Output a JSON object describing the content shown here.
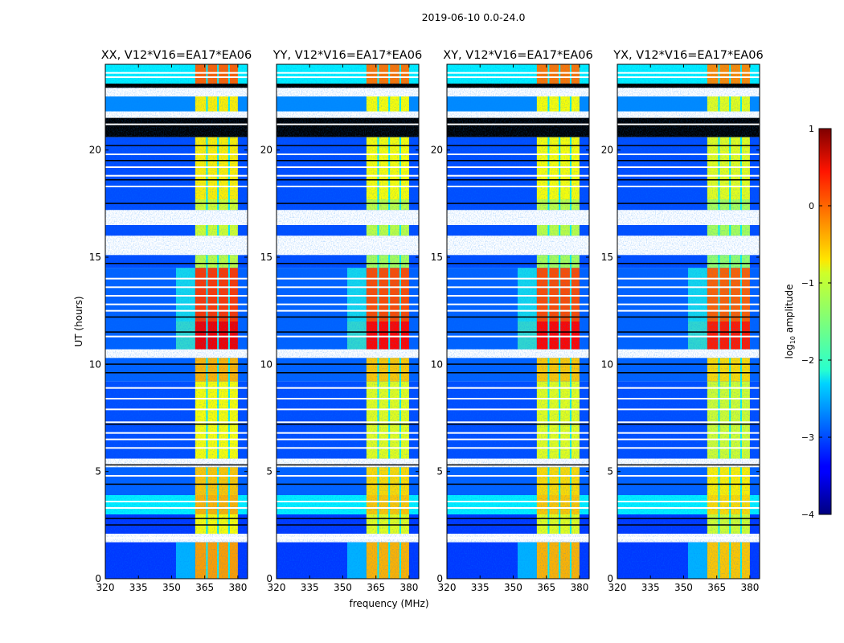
{
  "chart_data": {
    "type": "heatmap",
    "suptitle": "2019-06-10 0.0-24.0",
    "xlabel": "frequency (MHz)",
    "ylabel": "UT (hours)",
    "xlim": [
      320,
      384.4
    ],
    "ylim": [
      0,
      24
    ],
    "xticks": [
      320,
      335,
      350,
      365,
      380
    ],
    "yticks": [
      0,
      5,
      10,
      15,
      20
    ],
    "colorbar": {
      "label": "log10 amplitude",
      "label_main": "log",
      "label_sub": "10",
      "label_rest": " amplitude",
      "range": [
        -4,
        1
      ],
      "ticks": [
        1,
        0,
        -1,
        -2,
        -3,
        -4
      ],
      "tick_labels": [
        "1",
        "0",
        "−1",
        "−2",
        "−3",
        "−4"
      ],
      "colormap": "jet"
    },
    "panels": [
      {
        "title": "XX, V12*V16=EA17*EA06",
        "high_offset": 0.1
      },
      {
        "title": "YY, V12*V16=EA17*EA06",
        "high_offset": 0.0
      },
      {
        "title": "XY, V12*V16=EA17*EA06",
        "high_offset": 0.0
      },
      {
        "title": "YX, V12*V16=EA17*EA06",
        "high_offset": -0.1
      }
    ],
    "rfi_band_mhz": [
      360.7,
      380
    ],
    "rfi_dips_mhz": [
      366,
      371,
      376
    ],
    "rfi_dip_value": -2.2,
    "edge_band_mhz": [
      352,
      360.7
    ],
    "time_segments": [
      {
        "t0": 23.1,
        "t1": 24.0,
        "low": -2.2,
        "high": -0.2
      },
      {
        "t0": 22.9,
        "t1": 23.1,
        "flag": "black"
      },
      {
        "t0": 22.5,
        "t1": 22.9,
        "flag": "white"
      },
      {
        "t0": 21.8,
        "t1": 22.5,
        "low": -2.7,
        "high": -0.9
      },
      {
        "t0": 21.5,
        "t1": 21.8,
        "flag": "white"
      },
      {
        "t0": 20.6,
        "t1": 21.5,
        "flag": "black"
      },
      {
        "t0": 17.7,
        "t1": 20.6,
        "low": -3.0,
        "high": -0.9
      },
      {
        "t0": 17.2,
        "t1": 17.7,
        "low": -3.0,
        "high": -1.2
      },
      {
        "t0": 16.5,
        "t1": 17.2,
        "flag": "white"
      },
      {
        "t0": 16.0,
        "t1": 16.5,
        "low": -3.0,
        "high": -1.2
      },
      {
        "t0": 15.1,
        "t1": 16.0,
        "flag": "white"
      },
      {
        "t0": 14.5,
        "t1": 15.1,
        "low": -3.0,
        "high": -1.3
      },
      {
        "t0": 12.0,
        "t1": 14.5,
        "low": -2.9,
        "high": 0.0,
        "edge": -2.0
      },
      {
        "t0": 10.7,
        "t1": 12.0,
        "low": -2.9,
        "high": 0.35,
        "edge": -1.8
      },
      {
        "t0": 10.3,
        "t1": 10.7,
        "flag": "white"
      },
      {
        "t0": 9.2,
        "t1": 10.3,
        "low": -2.9,
        "high": -0.6
      },
      {
        "t0": 5.6,
        "t1": 9.2,
        "low": -3.0,
        "high": -1.0
      },
      {
        "t0": 5.2,
        "t1": 5.6,
        "flag": "white"
      },
      {
        "t0": 3.9,
        "t1": 5.2,
        "low": -2.9,
        "high": -0.7
      },
      {
        "t0": 3.0,
        "t1": 3.9,
        "low": -2.2,
        "high": -0.6
      },
      {
        "t0": 2.1,
        "t1": 3.0,
        "low": -3.1,
        "high": -1.0
      },
      {
        "t0": 1.7,
        "t1": 2.1,
        "flag": "white"
      },
      {
        "t0": 0.0,
        "t1": 1.7,
        "low": -3.1,
        "high": -0.5,
        "edge": -2.3
      }
    ],
    "white_lines_hours": [
      23.6,
      23.4,
      21.2,
      19.8,
      19.2,
      18.8,
      18.3,
      14.0,
      13.6,
      13.2,
      12.8,
      12.5,
      11.3,
      8.9,
      8.4,
      7.9,
      7.3,
      6.8,
      6.5,
      6.1,
      4.8,
      3.6,
      3.3,
      1.9
    ],
    "black_lines_hours": [
      23.0,
      20.2,
      19.5,
      18.6,
      17.5,
      14.7,
      12.2,
      11.5,
      10.0,
      9.6,
      7.2,
      5.3,
      4.4,
      2.8,
      2.5
    ]
  }
}
